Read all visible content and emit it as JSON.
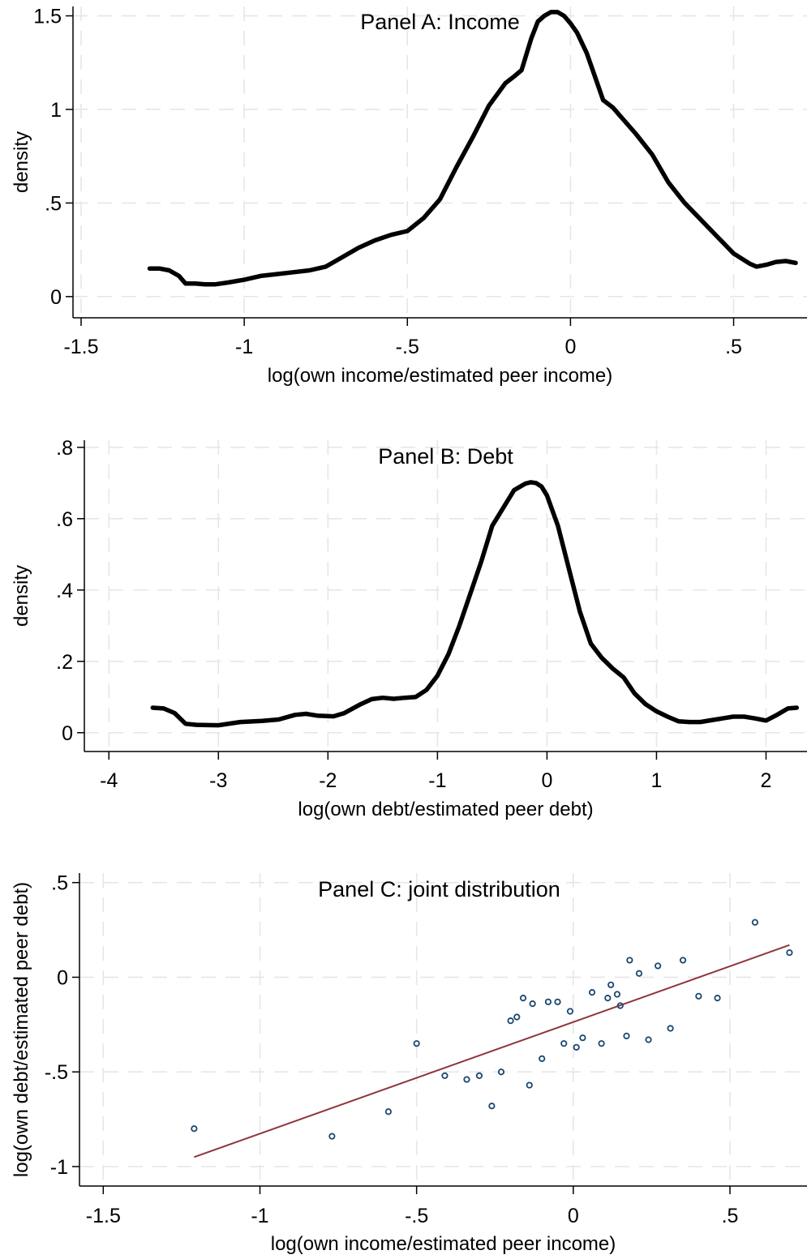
{
  "chart_data": [
    {
      "type": "line",
      "title": "Panel A: Income",
      "xlabel": "log(own income/estimated peer income)",
      "ylabel": "density",
      "xlim": [
        -1.5,
        0.7
      ],
      "ylim": [
        -0.07,
        1.55
      ],
      "xticks": [
        -1.5,
        -1,
        -0.5,
        0,
        0.5
      ],
      "xtick_labels": [
        "-1.5",
        "-1",
        "-.5",
        "0",
        ".5"
      ],
      "yticks": [
        0,
        0.5,
        1,
        1.5
      ],
      "ytick_labels": [
        "0",
        ".5",
        "1",
        "1.5"
      ],
      "grid": true,
      "series": [
        {
          "color": "#000000",
          "x": [
            -1.29,
            -1.26,
            -1.23,
            -1.2,
            -1.18,
            -1.15,
            -1.12,
            -1.09,
            -1.05,
            -1.0,
            -0.95,
            -0.9,
            -0.85,
            -0.8,
            -0.75,
            -0.7,
            -0.65,
            -0.6,
            -0.55,
            -0.5,
            -0.45,
            -0.4,
            -0.35,
            -0.3,
            -0.25,
            -0.2,
            -0.17,
            -0.15,
            -0.12,
            -0.1,
            -0.08,
            -0.06,
            -0.04,
            -0.02,
            0.0,
            0.02,
            0.05,
            0.08,
            0.1,
            0.13,
            0.15,
            0.2,
            0.25,
            0.3,
            0.35,
            0.4,
            0.45,
            0.5,
            0.55,
            0.57,
            0.6,
            0.63,
            0.66,
            0.69
          ],
          "y": [
            0.15,
            0.15,
            0.14,
            0.11,
            0.07,
            0.07,
            0.065,
            0.065,
            0.075,
            0.09,
            0.11,
            0.12,
            0.13,
            0.14,
            0.16,
            0.21,
            0.26,
            0.3,
            0.33,
            0.35,
            0.42,
            0.52,
            0.69,
            0.85,
            1.02,
            1.14,
            1.18,
            1.21,
            1.38,
            1.47,
            1.5,
            1.52,
            1.52,
            1.5,
            1.46,
            1.41,
            1.3,
            1.15,
            1.05,
            1.01,
            0.97,
            0.87,
            0.76,
            0.61,
            0.5,
            0.41,
            0.32,
            0.23,
            0.175,
            0.16,
            0.17,
            0.185,
            0.19,
            0.18
          ]
        }
      ]
    },
    {
      "type": "line",
      "title": "Panel B: Debt",
      "xlabel": "log(own debt/estimated peer debt)",
      "ylabel": "density",
      "xlim": [
        -4.15,
        2.3
      ],
      "ylim": [
        -0.03,
        0.82
      ],
      "xticks": [
        -4,
        -3,
        -2,
        -1,
        0,
        1,
        2
      ],
      "xtick_labels": [
        "-4",
        "-3",
        "-2",
        "-1",
        "0",
        "1",
        "2"
      ],
      "yticks": [
        0,
        0.2,
        0.4,
        0.6,
        0.8
      ],
      "ytick_labels": [
        "0",
        ".2",
        ".4",
        ".6",
        ".8"
      ],
      "grid": true,
      "series": [
        {
          "color": "#000000",
          "x": [
            -3.6,
            -3.5,
            -3.4,
            -3.3,
            -3.2,
            -3.0,
            -2.8,
            -2.6,
            -2.45,
            -2.3,
            -2.2,
            -2.1,
            -1.95,
            -1.85,
            -1.7,
            -1.6,
            -1.5,
            -1.4,
            -1.3,
            -1.2,
            -1.1,
            -1.0,
            -0.9,
            -0.8,
            -0.7,
            -0.6,
            -0.5,
            -0.4,
            -0.3,
            -0.2,
            -0.15,
            -0.1,
            -0.05,
            0.0,
            0.1,
            0.2,
            0.3,
            0.4,
            0.5,
            0.6,
            0.7,
            0.8,
            0.9,
            1.0,
            1.1,
            1.2,
            1.3,
            1.4,
            1.5,
            1.6,
            1.7,
            1.8,
            1.9,
            2.0,
            2.1,
            2.2,
            2.28
          ],
          "y": [
            0.07,
            0.068,
            0.055,
            0.025,
            0.022,
            0.021,
            0.03,
            0.033,
            0.037,
            0.05,
            0.053,
            0.048,
            0.046,
            0.055,
            0.08,
            0.094,
            0.098,
            0.095,
            0.098,
            0.1,
            0.12,
            0.16,
            0.22,
            0.3,
            0.39,
            0.48,
            0.58,
            0.63,
            0.68,
            0.698,
            0.702,
            0.7,
            0.69,
            0.665,
            0.58,
            0.46,
            0.34,
            0.25,
            0.21,
            0.18,
            0.155,
            0.11,
            0.08,
            0.06,
            0.045,
            0.032,
            0.03,
            0.03,
            0.035,
            0.04,
            0.045,
            0.045,
            0.04,
            0.034,
            0.05,
            0.068,
            0.07
          ]
        }
      ]
    },
    {
      "type": "scatter",
      "title": "Panel C: joint distribution",
      "xlabel": "log(own income/estimated peer income)",
      "ylabel": "log(own debt/estimated peer debt)",
      "xlim": [
        -1.55,
        0.72
      ],
      "ylim": [
        -1.06,
        0.55
      ],
      "xticks": [
        -1.5,
        -1,
        -0.5,
        0,
        0.5
      ],
      "xtick_labels": [
        "-1.5",
        "-1",
        "-.5",
        "0",
        ".5"
      ],
      "yticks": [
        -1,
        -0.5,
        0,
        0.5
      ],
      "ytick_labels": [
        "-1",
        "-.5",
        "0",
        ".5"
      ],
      "grid": true,
      "point_color": "#1a476f",
      "fit_color": "#90353b",
      "points": [
        [
          -1.21,
          -0.8
        ],
        [
          -0.77,
          -0.84
        ],
        [
          -0.59,
          -0.71
        ],
        [
          -0.5,
          -0.35
        ],
        [
          -0.41,
          -0.52
        ],
        [
          -0.34,
          -0.54
        ],
        [
          -0.3,
          -0.52
        ],
        [
          -0.26,
          -0.68
        ],
        [
          -0.23,
          -0.5
        ],
        [
          -0.2,
          -0.23
        ],
        [
          -0.18,
          -0.21
        ],
        [
          -0.16,
          -0.11
        ],
        [
          -0.14,
          -0.57
        ],
        [
          -0.13,
          -0.14
        ],
        [
          -0.1,
          -0.43
        ],
        [
          -0.08,
          -0.13
        ],
        [
          -0.05,
          -0.13
        ],
        [
          -0.03,
          -0.35
        ],
        [
          -0.01,
          -0.18
        ],
        [
          0.01,
          -0.37
        ],
        [
          0.03,
          -0.32
        ],
        [
          0.06,
          -0.08
        ],
        [
          0.09,
          -0.35
        ],
        [
          0.11,
          -0.11
        ],
        [
          0.12,
          -0.04
        ],
        [
          0.14,
          -0.09
        ],
        [
          0.15,
          -0.15
        ],
        [
          0.17,
          -0.31
        ],
        [
          0.18,
          0.09
        ],
        [
          0.21,
          0.02
        ],
        [
          0.24,
          -0.33
        ],
        [
          0.27,
          0.06
        ],
        [
          0.31,
          -0.27
        ],
        [
          0.35,
          0.09
        ],
        [
          0.4,
          -0.1
        ],
        [
          0.46,
          -0.11
        ],
        [
          0.58,
          0.29
        ],
        [
          0.69,
          0.13
        ]
      ],
      "fit_line": {
        "x": [
          -1.21,
          0.69
        ],
        "y": [
          -0.95,
          0.17
        ]
      }
    }
  ]
}
